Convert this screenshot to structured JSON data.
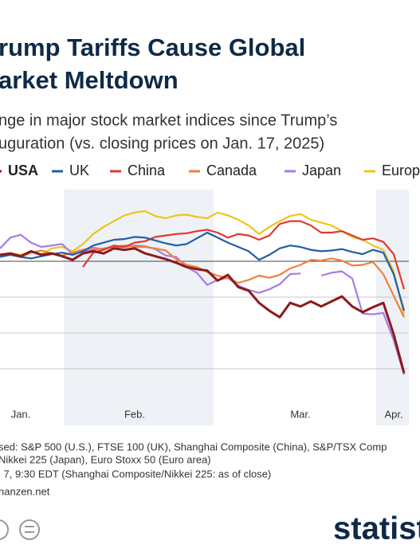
{
  "chart_data": {
    "type": "line",
    "title_lines": [
      "rump Tariffs Cause Global",
      "arket Meltdown"
    ],
    "subtitle_lines": [
      "nge in major stock market indices since Trump’s",
      "uguration (vs. closing prices on Jan. 17, 2025)"
    ],
    "categories": [
      null,
      null,
      "Jan.",
      null,
      null,
      null,
      null,
      null,
      null,
      null,
      null,
      null,
      null,
      "Feb.",
      null,
      null,
      null,
      null,
      null,
      null,
      null,
      null,
      null,
      null,
      null,
      null,
      null,
      null,
      null,
      "Mar.",
      null,
      null,
      null,
      null,
      null,
      null,
      null,
      null,
      "Apr.",
      null
    ],
    "ylim": [
      -20,
      10
    ],
    "gridlines": [
      0,
      -5,
      -10,
      -15
    ],
    "series": [
      {
        "name": "USA",
        "color": "#8b1a1a",
        "values": [
          0.9,
          1.1,
          0.7,
          1.4,
          0.9,
          1.1,
          0.7,
          0.2,
          1.1,
          1.4,
          1.1,
          1.8,
          1.6,
          1.8,
          1.1,
          0.7,
          0.3,
          -0.2,
          -0.8,
          -1.1,
          -1.3,
          -2.7,
          -1.9,
          -3.6,
          -4.1,
          -5.8,
          -6.9,
          -7.8,
          -5.8,
          -6.3,
          -5.6,
          -6.3,
          -5.6,
          -4.9,
          -6.3,
          -7.1,
          -6.4,
          -5.8,
          -10.2,
          -15.6
        ]
      },
      {
        "name": "UK",
        "color": "#1f5fa8",
        "values": [
          0.6,
          0.9,
          0.6,
          0.4,
          0.7,
          1,
          1.2,
          0.9,
          1.4,
          2.2,
          2.6,
          3,
          3.1,
          3.4,
          3.3,
          2.9,
          2.5,
          2.2,
          2.4,
          3.2,
          4,
          3.3,
          2.6,
          2.0,
          1.4,
          0.2,
          0.9,
          1.8,
          2.2,
          2.0,
          1.6,
          1.4,
          1.5,
          1.7,
          1.3,
          1.0,
          1.6,
          1.2,
          -1.8,
          -6.9
        ]
      },
      {
        "name": "China",
        "color": "#e03a2f",
        "values": [
          null,
          null,
          null,
          null,
          null,
          null,
          null,
          null,
          -0.8,
          1.2,
          1.6,
          2.2,
          2.0,
          2.6,
          2.8,
          3.4,
          3.6,
          3.8,
          3.9,
          4.2,
          4.4,
          4.0,
          3.3,
          3.8,
          3.6,
          3.0,
          3.6,
          5.2,
          5.6,
          5.6,
          5.0,
          4.0,
          4.0,
          4.2,
          3.6,
          3.0,
          3.2,
          2.7,
          1.0,
          -3.9
        ]
      },
      {
        "name": "Canada",
        "color": "#f07f3c",
        "values": [
          0.8,
          1.0,
          0.6,
          1.2,
          1.5,
          1.1,
          0.8,
          1.2,
          1.6,
          1.9,
          1.7,
          2.0,
          2.2,
          2.0,
          2.0,
          1.8,
          1.5,
          0.3,
          -0.5,
          -0.8,
          -1.5,
          -2.0,
          -2.4,
          -3.0,
          -2.6,
          -2.0,
          -2.3,
          -1.9,
          -1.0,
          -0.5,
          0.2,
          0.1,
          0.4,
          0.1,
          -0.6,
          -0.5,
          -0.1,
          -1.8,
          -4.8,
          -7.8
        ]
      },
      {
        "name": "Japan",
        "color": "#a77be8",
        "values": [
          1.8,
          3.3,
          3.7,
          2.6,
          2.0,
          2.2,
          2.4,
          1.0,
          1.4,
          1.6,
          1.8,
          2.0,
          2.0,
          2.2,
          2.1,
          1.7,
          0.8,
          0.6,
          -0.8,
          -1.6,
          -3.3,
          -2.6,
          -2.3,
          -3.4,
          -4.0,
          -4.4,
          -3.9,
          -3.2,
          -1.8,
          -1.7,
          null,
          -2.0,
          -1.6,
          -1.4,
          -2.4,
          -7.3,
          -7.4,
          -7.2,
          -11.0,
          -15.8
        ]
      },
      {
        "name": "Europ",
        "color": "#f0c419",
        "values": [
          0.7,
          1.1,
          0.9,
          1.3,
          1.0,
          1.8,
          2.0,
          1.4,
          2.4,
          3.8,
          4.8,
          5.6,
          6.4,
          6.8,
          7.0,
          6.3,
          6.0,
          6.4,
          6.5,
          6.2,
          6.0,
          6.8,
          6.4,
          5.8,
          5.0,
          3.8,
          4.8,
          5.6,
          6.3,
          6.6,
          5.8,
          5.4,
          5.0,
          4.2,
          3.4,
          3.0,
          2.2,
          1.6,
          -1.4,
          -7.4
        ]
      }
    ],
    "source_lines": [
      "sed: S&P 500 (U.S.), FTSE 100 (UK), Shanghai Composite (China), S&P/TSX Comp",
      "Nikkei 225 (Japan), Euro Stoxx 50 (Euro area)",
      "l 7, 9:30 EDT (Shanghai Composite/Nikkei 225: as of close)",
      "nanzen.net"
    ],
    "logo": "statist"
  }
}
